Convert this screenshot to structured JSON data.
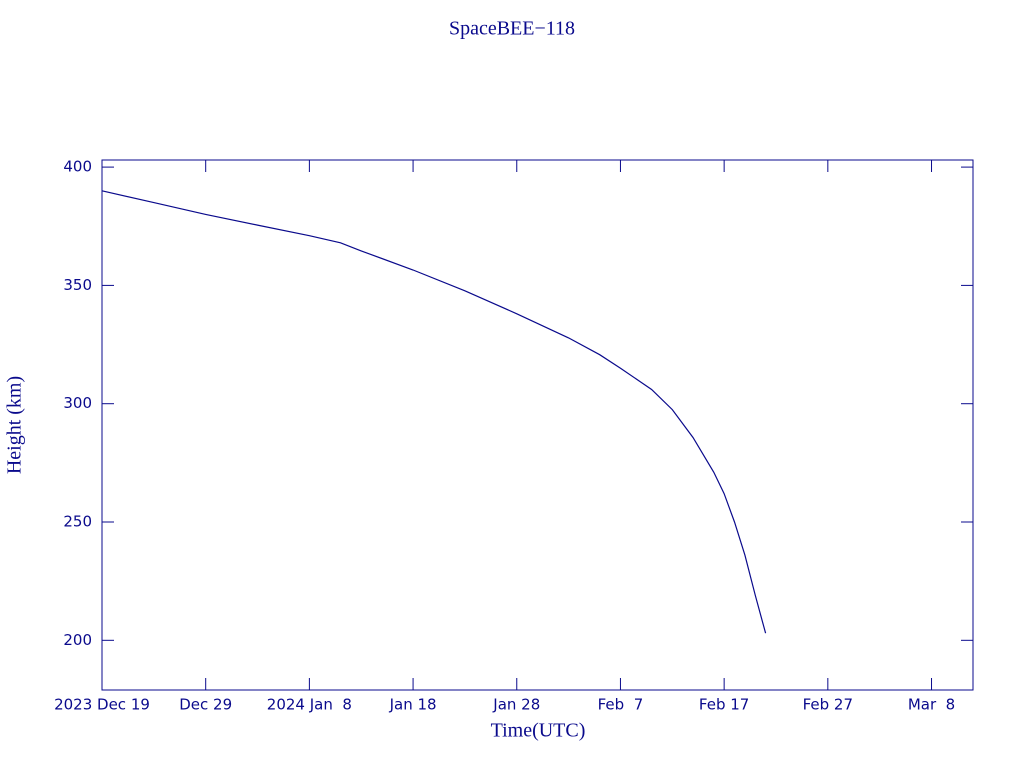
{
  "chart_data": {
    "type": "line",
    "title": "SpaceBEE−118",
    "x_label": "Time(UTC)",
    "y_label": "Height (km)",
    "color": "#0a0a8c",
    "x": [
      "2023-12-19",
      "2023-12-24",
      "2023-12-29",
      "2024-01-03",
      "2024-01-08",
      "2024-01-11",
      "2024-01-13",
      "2024-01-18",
      "2024-01-23",
      "2024-01-28",
      "2024-02-02",
      "2024-02-05",
      "2024-02-07",
      "2024-02-10",
      "2024-02-12",
      "2024-02-14",
      "2024-02-16",
      "2024-02-17",
      "2024-02-18",
      "2024-02-19",
      "2024-02-20",
      "2024-02-21"
    ],
    "values": [
      390,
      385,
      380,
      375.5,
      371,
      368,
      364.6,
      356.5,
      347.7,
      338,
      327.8,
      320.7,
      315,
      306,
      297.5,
      285.7,
      271,
      262,
      250,
      236,
      219,
      203
    ],
    "xlim": [
      "2023-12-19",
      "2024-03-12"
    ],
    "xticks": [
      {
        "value": "2023-12-19",
        "label": "2023 Dec 19"
      },
      {
        "value": "2023-12-29",
        "label": "Dec 29"
      },
      {
        "value": "2024-01-08",
        "label": "2024 Jan  8"
      },
      {
        "value": "2024-01-18",
        "label": "Jan 18"
      },
      {
        "value": "2024-01-28",
        "label": "Jan 28"
      },
      {
        "value": "2024-02-07",
        "label": "Feb  7"
      },
      {
        "value": "2024-02-17",
        "label": "Feb 17"
      },
      {
        "value": "2024-02-27",
        "label": "Feb 27"
      },
      {
        "value": "2024-03-08",
        "label": "Mar  8"
      }
    ],
    "ylim": [
      179,
      403
    ],
    "yticks": [
      200,
      250,
      300,
      350,
      400
    ],
    "grid": false
  }
}
